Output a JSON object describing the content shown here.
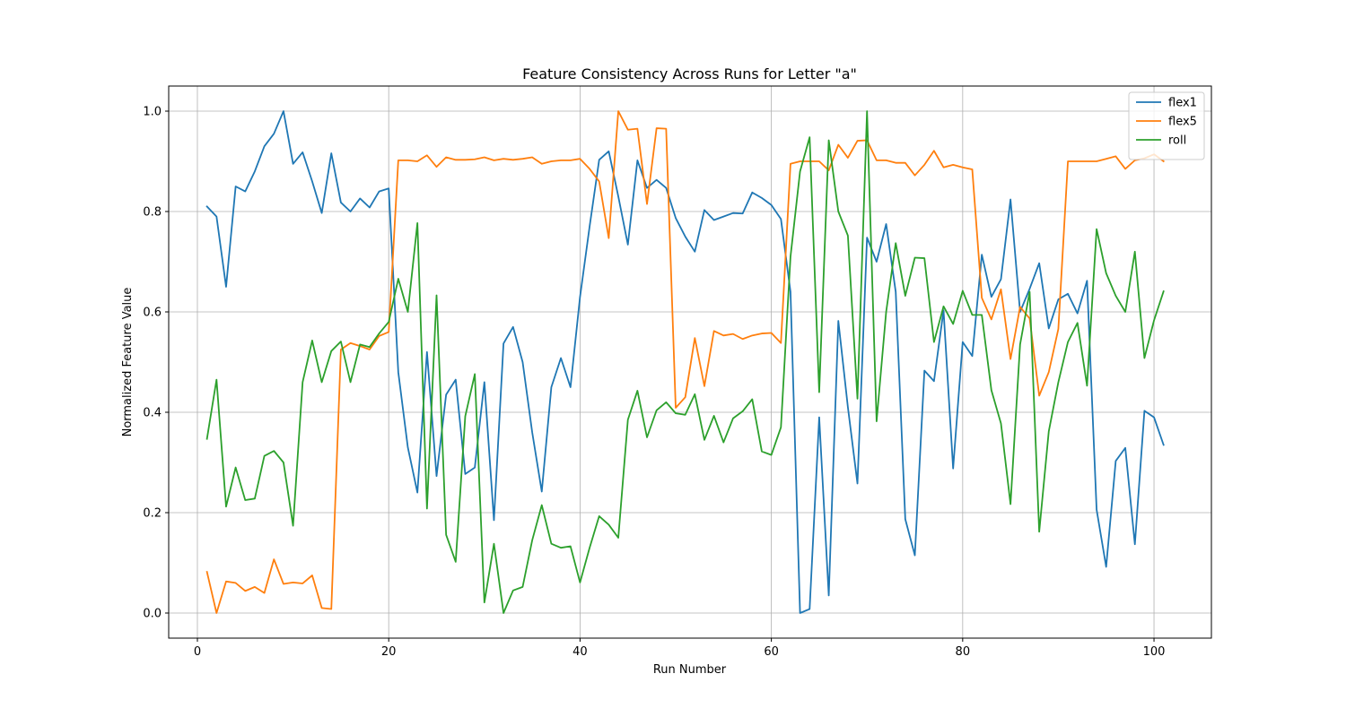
{
  "chart_data": {
    "type": "line",
    "title": "Feature Consistency Across Runs for Letter \"a\"",
    "xlabel": "Run Number",
    "ylabel": "Normalized Feature Value",
    "xlim": [
      -3,
      106
    ],
    "ylim": [
      -0.05,
      1.05
    ],
    "xticks": [
      0,
      20,
      40,
      60,
      80,
      100
    ],
    "yticks": [
      0.0,
      0.2,
      0.4,
      0.6,
      0.8,
      1.0
    ],
    "grid": true,
    "legend_position": "top-right",
    "x": [
      1,
      2,
      3,
      4,
      5,
      6,
      7,
      8,
      9,
      10,
      11,
      12,
      13,
      14,
      15,
      16,
      17,
      18,
      19,
      20,
      21,
      22,
      23,
      24,
      25,
      26,
      27,
      28,
      29,
      30,
      31,
      32,
      33,
      34,
      35,
      36,
      37,
      38,
      39,
      40,
      41,
      42,
      43,
      44,
      45,
      46,
      47,
      48,
      49,
      50,
      51,
      52,
      53,
      54,
      55,
      56,
      57,
      58,
      59,
      60,
      61,
      62,
      63,
      64,
      65,
      66,
      67,
      68,
      69,
      70,
      71,
      72,
      73,
      74,
      75,
      76,
      77,
      78,
      79,
      80,
      81,
      82,
      83,
      84,
      85,
      86,
      87,
      88,
      89,
      90,
      91,
      92,
      93,
      94,
      95,
      96,
      97,
      98,
      99,
      100,
      101
    ],
    "series": [
      {
        "name": "flex1",
        "color": "#1f77b4",
        "values": [
          0.81,
          0.79,
          0.65,
          0.85,
          0.84,
          0.88,
          0.93,
          0.955,
          1.0,
          0.895,
          0.918,
          0.86,
          0.797,
          0.916,
          0.818,
          0.8,
          0.826,
          0.808,
          0.84,
          0.846,
          0.48,
          0.33,
          0.24,
          0.52,
          0.273,
          0.435,
          0.465,
          0.277,
          0.29,
          0.46,
          0.185,
          0.537,
          0.57,
          0.5,
          0.36,
          0.242,
          0.45,
          0.508,
          0.45,
          0.63,
          0.77,
          0.903,
          0.92,
          0.83,
          0.734,
          0.902,
          0.847,
          0.863,
          0.847,
          0.787,
          0.75,
          0.72,
          0.803,
          0.783,
          0.79,
          0.797,
          0.796,
          0.838,
          0.827,
          0.813,
          0.785,
          0.64,
          0.0,
          0.008,
          0.39,
          0.035,
          0.582,
          0.41,
          0.258,
          0.748,
          0.7,
          0.775,
          0.64,
          0.187,
          0.115,
          0.483,
          0.462,
          0.603,
          0.288,
          0.54,
          0.512,
          0.714,
          0.63,
          0.665,
          0.824,
          0.6,
          0.646,
          0.697,
          0.567,
          0.625,
          0.636,
          0.597,
          0.662,
          0.206,
          0.092,
          0.303,
          0.329,
          0.137,
          0.403,
          0.39,
          0.335
        ]
      },
      {
        "name": "flex5",
        "color": "#ff7f0e",
        "values": [
          0.082,
          0.0,
          0.063,
          0.06,
          0.044,
          0.052,
          0.04,
          0.107,
          0.058,
          0.061,
          0.059,
          0.075,
          0.01,
          0.008,
          0.525,
          0.538,
          0.532,
          0.525,
          0.552,
          0.56,
          0.902,
          0.902,
          0.9,
          0.912,
          0.889,
          0.908,
          0.903,
          0.903,
          0.904,
          0.908,
          0.902,
          0.905,
          0.903,
          0.905,
          0.908,
          0.895,
          0.9,
          0.902,
          0.902,
          0.905,
          0.885,
          0.86,
          0.747,
          1.0,
          0.963,
          0.965,
          0.815,
          0.966,
          0.965,
          0.409,
          0.43,
          0.548,
          0.452,
          0.562,
          0.553,
          0.556,
          0.546,
          0.553,
          0.557,
          0.558,
          0.538,
          0.895,
          0.9,
          0.9,
          0.9,
          0.882,
          0.933,
          0.907,
          0.941,
          0.942,
          0.902,
          0.902,
          0.897,
          0.897,
          0.872,
          0.893,
          0.921,
          0.888,
          0.893,
          0.888,
          0.884,
          0.628,
          0.585,
          0.645,
          0.506,
          0.61,
          0.587,
          0.433,
          0.48,
          0.566,
          0.9,
          0.9,
          0.9,
          0.9,
          0.905,
          0.91,
          0.885,
          0.902,
          0.906,
          0.914,
          0.9
        ]
      },
      {
        "name": "roll",
        "color": "#2ca02c",
        "values": [
          0.347,
          0.465,
          0.212,
          0.29,
          0.225,
          0.228,
          0.313,
          0.323,
          0.3,
          0.174,
          0.46,
          0.543,
          0.46,
          0.522,
          0.541,
          0.46,
          0.535,
          0.53,
          0.557,
          0.58,
          0.666,
          0.6,
          0.777,
          0.208,
          0.633,
          0.156,
          0.102,
          0.392,
          0.476,
          0.021,
          0.138,
          0.0,
          0.045,
          0.052,
          0.145,
          0.215,
          0.138,
          0.13,
          0.133,
          0.061,
          0.13,
          0.193,
          0.176,
          0.15,
          0.385,
          0.443,
          0.35,
          0.404,
          0.42,
          0.398,
          0.395,
          0.436,
          0.345,
          0.393,
          0.34,
          0.388,
          0.402,
          0.426,
          0.322,
          0.315,
          0.37,
          0.71,
          0.88,
          0.948,
          0.44,
          0.942,
          0.8,
          0.752,
          0.427,
          1.0,
          0.382,
          0.6,
          0.737,
          0.632,
          0.708,
          0.707,
          0.54,
          0.611,
          0.576,
          0.642,
          0.594,
          0.594,
          0.444,
          0.378,
          0.217,
          0.535,
          0.64,
          0.162,
          0.362,
          0.46,
          0.54,
          0.578,
          0.453,
          0.765,
          0.677,
          0.632,
          0.6,
          0.72,
          0.508,
          0.583,
          0.641
        ]
      }
    ]
  }
}
